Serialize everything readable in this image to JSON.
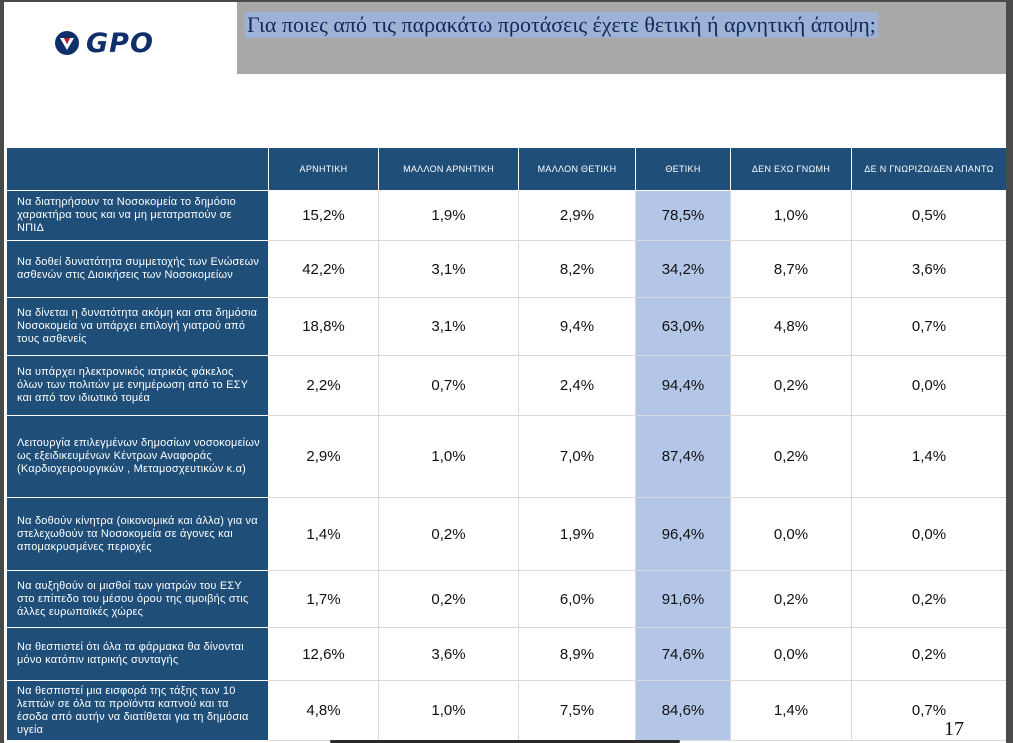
{
  "logo": {
    "text": "GPO",
    "brand_color": "#0f2f6b",
    "accent_color": "#c8102e",
    "icon": "gpo-v-logo-icon"
  },
  "title": "Για ποιες από τις παρακάτω προτάσεις έχετε θετική ή αρνητική άποψη;",
  "table": {
    "columns": [
      "ΑΡΝΗΤΙΚΗ",
      "ΜΑΛΛΟΝ ΑΡΝΗΤΙΚΗ",
      "ΜΑΛΛΟΝ ΘΕΤΙΚΗ",
      "ΘΕΤΙΚΗ",
      "ΔΕΝ ΕΧΩ ΓΝΩΜΗ",
      "ΔΕ Ν ΓΝΩΡΙΖΩ/ΔΕΝ ΑΠΑΝΤΩ"
    ],
    "highlight_column": 3,
    "header_color": "#1f4e79",
    "highlight_color": "#b3c6e7",
    "rows": [
      {
        "label": "Να διατηρήσουν  τα Νοσοκομεία το δημόσιο χαρακτήρα τους και να μη μετατραπούν σε  ΝΠΙΔ",
        "values": [
          "15,2%",
          "1,9%",
          "2,9%",
          "78,5%",
          "1,0%",
          "0,5%"
        ]
      },
      {
        "label": "Να  δοθεί δυνατότητα συμμετοχής των Ενώσεων ασθενών στις Διοικήσεις των Νοσοκομείων",
        "values": [
          "42,2%",
          "3,1%",
          "8,2%",
          "34,2%",
          "8,7%",
          "3,6%"
        ]
      },
      {
        "label": "Να δίνεται η δυνατότητα ακόμη και στα δημόσια  Νοσοκομεία να υπάρχει επιλογή γιατρού από τους ασθενείς",
        "values": [
          "18,8%",
          "3,1%",
          "9,4%",
          "63,0%",
          "4,8%",
          "0,7%"
        ]
      },
      {
        "label": "Να υπάρχει ηλεκτρονικός ιατρικός φάκελος όλων των πολιτών με ενημέρωση από το ΕΣΥ και από τον ιδιωτικό τομέα",
        "values": [
          "2,2%",
          "0,7%",
          "2,4%",
          "94,4%",
          "0,2%",
          "0,0%"
        ]
      },
      {
        "label": "Λειτουργία επιλεγμένων δημοσίων νοσοκομείων ως εξειδικευμένων Κέντρων Αναφοράς (Καρδιοχειρουργικών , Μεταμοσχευτικών κ.α)",
        "values": [
          "2,9%",
          "1,0%",
          "7,0%",
          "87,4%",
          "0,2%",
          "1,4%"
        ]
      },
      {
        "label": "Να δοθούν  κίνητρα (οικονομικά και άλλα) για να στελεχωθούν τα Νοσοκομεία σε άγονες και απομακρυσμένες περιοχές",
        "values": [
          "1,4%",
          "0,2%",
          "1,9%",
          "96,4%",
          "0,0%",
          "0,0%"
        ]
      },
      {
        "label": "Να αυξηθούν οι μισθοί των γιατρών του ΕΣΥ στο επίπεδο του μέσου όρου της αμοιβής στις άλλες ευρωπαϊκές χώρες",
        "values": [
          "1,7%",
          "0,2%",
          "6,0%",
          "91,6%",
          "0,2%",
          "0,2%"
        ]
      },
      {
        "label": "Να θεσπιστεί ότι όλα τα φάρμακα θα δίνονται μόνο κατόπιν ιατρικής συνταγής",
        "values": [
          "12,6%",
          "3,6%",
          "8,9%",
          "74,6%",
          "0,0%",
          "0,2%"
        ]
      },
      {
        "label": "Να θεσπιστεί μια εισφορά της τάξης των 10 λεπτών σε όλα τα προϊόντα καπνού και τα έσοδα από αυτήν να διατίθεται για τη δημόσια υγεία",
        "values": [
          "4,8%",
          "1,0%",
          "7,5%",
          "84,6%",
          "1,4%",
          "0,7%"
        ]
      }
    ]
  },
  "page_number": "17"
}
